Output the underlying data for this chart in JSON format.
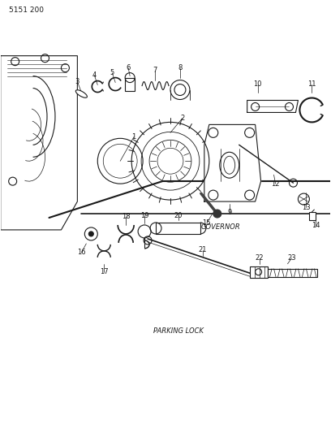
{
  "title": "5151 200",
  "governor_label": "GOVERNOR",
  "parking_label": "PARKING LOCK",
  "bg_color": "#ffffff",
  "line_color": "#1a1a1a",
  "figsize": [
    4.08,
    5.33
  ],
  "dpi": 100
}
